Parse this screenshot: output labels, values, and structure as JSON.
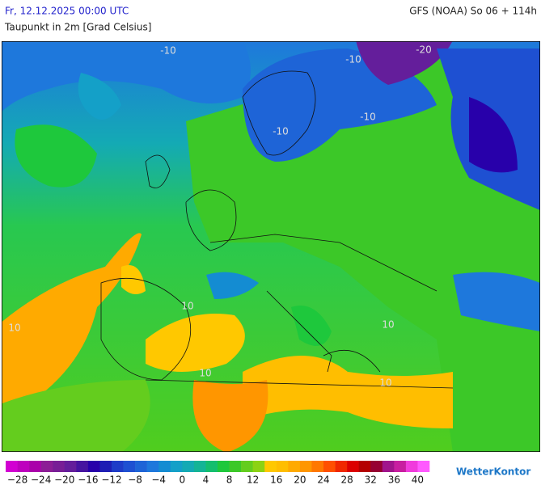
{
  "header": {
    "datetime": "Fr, 12.12.2025 00:00 UTC",
    "model": "GFS (NOAA) So 06 + 114h",
    "title": "Taupunkt in 2m [Grad Celsius]"
  },
  "map": {
    "contour_labels": [
      "-10",
      "-20",
      "-10",
      "-10",
      "-10",
      "10",
      "10",
      "10",
      "10",
      "10"
    ]
  },
  "legend": {
    "colors": [
      "#d200d2",
      "#be00be",
      "#aa00aa",
      "#8c1e96",
      "#781e96",
      "#641e9b",
      "#4614a0",
      "#2800aa",
      "#1e1eb4",
      "#1e3cc8",
      "#1e50d2",
      "#1e64d7",
      "#1e78dc",
      "#148cd2",
      "#14a0c8",
      "#14aab4",
      "#14b496",
      "#14be6e",
      "#1ec83c",
      "#3cc828",
      "#64cd1e",
      "#8cd214",
      "#ffc800",
      "#ffbe00",
      "#ffaa00",
      "#ff9600",
      "#ff7800",
      "#ff5000",
      "#f02800",
      "#dc0000",
      "#b40000",
      "#960032",
      "#a0148c",
      "#c81ea0",
      "#f03cdc",
      "#ff5aff"
    ],
    "labels": [
      "−28",
      "−24",
      "−20",
      "−16",
      "−12",
      "−8",
      "−4",
      "0",
      "4",
      "8",
      "12",
      "16",
      "20",
      "24",
      "28",
      "32",
      "36",
      "40"
    ]
  },
  "brand": "WetterKontor"
}
